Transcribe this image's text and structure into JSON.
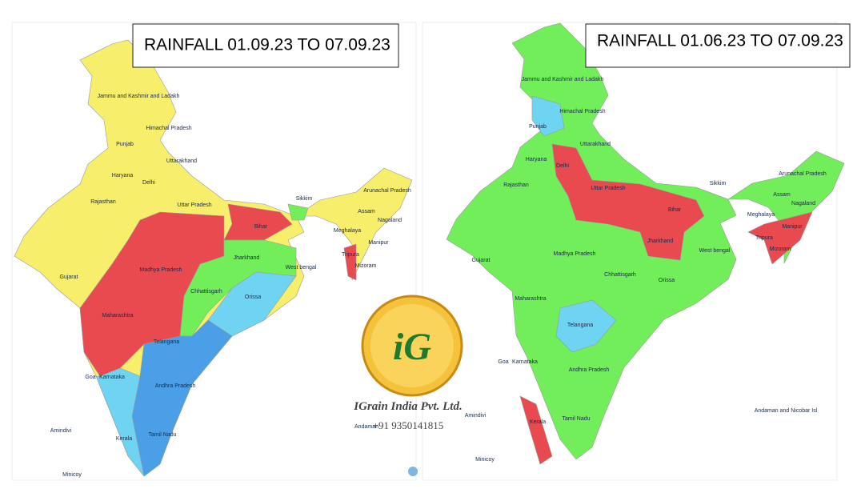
{
  "maps": [
    {
      "title": "RAINFALL 01.09.23 TO 07.09.23",
      "labels": [
        "Jammu and Kashmir and Ladakh",
        "Himachal Pradesh",
        "Punjab",
        "Uttarakhand",
        "Haryana",
        "Delhi",
        "Rajasthan",
        "Uttar Pradesh",
        "Bihar",
        "Sikkim",
        "Arunachal Pradesh",
        "Assam",
        "Nagaland",
        "Meghalaya",
        "Manipur",
        "Tripura",
        "Mizoram",
        "Jharkhand",
        "West bengal",
        "Gujarat",
        "Madhya Pradesh",
        "Chhattisgarh",
        "Orissa",
        "Maharashtra",
        "Telangana",
        "Goa",
        "Karnataka",
        "Andhra Pradesh",
        "Amindivi",
        "Kerala",
        "Tamil Nadu",
        "Andaman",
        "Minicoy"
      ]
    },
    {
      "title": "RAINFALL 01.06.23 TO 07.09.23",
      "labels": [
        "Jammu and Kashmir and Ladakh",
        "Himachal Pradesh",
        "Punjab",
        "Uttarakhand",
        "Haryana",
        "Delhi",
        "Rajasthan",
        "Uttar Pradesh",
        "Bihar",
        "Sikkim",
        "Arunachal Pradesh",
        "Assam",
        "Nagaland",
        "Meghalaya",
        "Manipur",
        "Tripura",
        "Mizoram",
        "Jharkhand",
        "West bengal",
        "Gujarat",
        "Madhya Pradesh",
        "Chhattisgarh",
        "Orissa",
        "Maharashtra",
        "Telangana",
        "Goa",
        "Karnataka",
        "Andhra Pradesh",
        "Amindivi",
        "Kerala",
        "Tamil Nadu",
        "Andaman and Nicobar Isl",
        "Minicoy"
      ]
    }
  ],
  "logo": {
    "mark": "iG",
    "company": "IGrain India Pvt. Ltd.",
    "phone": "+91 9350141815"
  }
}
